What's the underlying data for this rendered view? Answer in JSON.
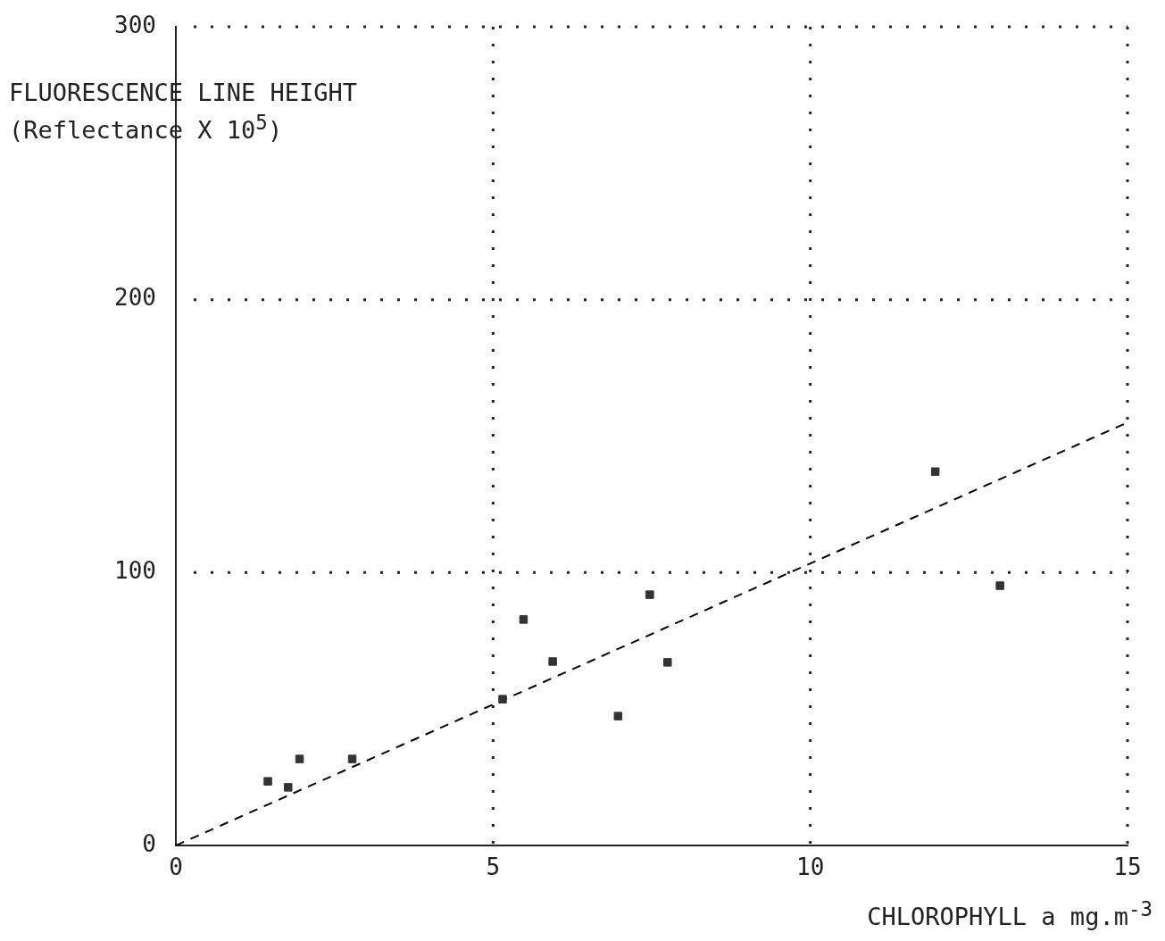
{
  "chart_data": {
    "type": "scatter",
    "xlabel": "CHLOROPHYLL a  mg.m$^{-3}$",
    "ylabel": "FLUORESCENCE LINE HEIGHT (Reflectance X 10$^{5}$)",
    "series": [
      {
        "type": "scatter",
        "color": "#333333",
        "x": [
          1.45,
          1.77,
          1.95,
          2.78,
          5.15,
          5.48,
          5.94,
          6.97,
          7.47,
          7.75,
          11.97,
          12.99
        ],
        "values": [
          23.5,
          21.3,
          31.7,
          31.7,
          53.6,
          82.8,
          67.4,
          47.4,
          91.9,
          67.1,
          137,
          95.2
        ]
      },
      {
        "type": "line",
        "color": "#000000",
        "x": [
          0,
          15
        ],
        "values": [
          0,
          155
        ],
        "line_style": "dashed",
        "marker": "none"
      }
    ],
    "xlim": [
      0,
      15
    ],
    "xticks": [
      0,
      5,
      10,
      15
    ],
    "ylim": [
      0,
      300
    ],
    "yticks": [
      0,
      100,
      200,
      300
    ],
    "grid": true,
    "legend": false,
    "marker": "square"
  }
}
